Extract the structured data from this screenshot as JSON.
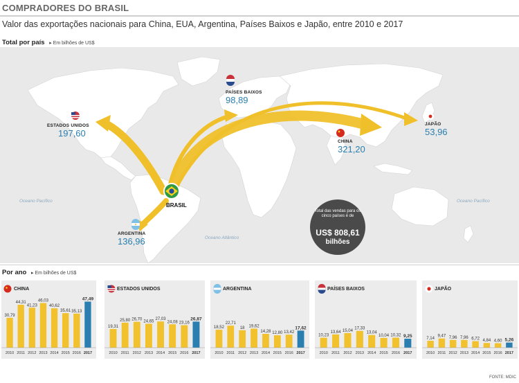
{
  "header": {
    "title": "COMPRADORES DO BRASIL",
    "subtitle": "Valor das exportações nacionais para China, EUA, Argentina, Países Baixos e Japão, entre 2010 e 2017"
  },
  "map": {
    "section_title": "Total por país",
    "section_unit": "Em bilhões de US$",
    "origin_label": "BRASIL",
    "countries": [
      {
        "name": "ESTADOS UNIDOS",
        "value": "197,60"
      },
      {
        "name": "PAÍSES BAIXOS",
        "value": "98,89"
      },
      {
        "name": "CHINA",
        "value": "321,20"
      },
      {
        "name": "JAPÃO",
        "value": "53,96"
      },
      {
        "name": "ARGENTINA",
        "value": "136,96"
      }
    ],
    "oceans": {
      "pacific_left": "Oceano Pacífico",
      "pacific_right": "Oceano Pacífico",
      "atlantic": "Oceano Atlântico"
    },
    "total": {
      "text": "Total das vendas para os cinco países é de",
      "value": "US$ 808,61",
      "unit": "bilhões"
    }
  },
  "colors": {
    "bar": "#f2c12e",
    "bar_highlight": "#2a7fb0",
    "arrow": "#f0c02b",
    "land": "#ffffff",
    "ocean": "#e9e9e9",
    "panel": "#ececec",
    "value_text": "#2a7fb0"
  },
  "by_year": {
    "section_title": "Por ano",
    "section_unit": "Em bilhões de US$"
  },
  "chart_data": [
    {
      "type": "bar",
      "title": "CHINA",
      "categories": [
        "2010",
        "2011",
        "2012",
        "2013",
        "2014",
        "2015",
        "2016",
        "2017"
      ],
      "values": [
        30.79,
        44.31,
        41.23,
        46.03,
        40.62,
        35.61,
        35.13,
        47.49
      ],
      "labels": [
        "30,79",
        "44,31",
        "41,23",
        "46,03",
        "40,62",
        "35,61",
        "35,13",
        "47,49"
      ],
      "ylim": [
        0,
        50
      ]
    },
    {
      "type": "bar",
      "title": "ESTADOS UNIDOS",
      "categories": [
        "2010",
        "2011",
        "2012",
        "2013",
        "2014",
        "2015",
        "2016",
        "2017"
      ],
      "values": [
        19.31,
        25.8,
        26.7,
        24.65,
        27.03,
        24.08,
        23.16,
        26.87
      ],
      "labels": [
        "19,31",
        "25,80",
        "26,70",
        "24,65",
        "27,03",
        "24,08",
        "23,16",
        "26,87"
      ],
      "ylim": [
        0,
        50
      ]
    },
    {
      "type": "bar",
      "title": "ARGENTINA",
      "categories": [
        "2010",
        "2011",
        "2012",
        "2013",
        "2014",
        "2015",
        "2016",
        "2017"
      ],
      "values": [
        18.52,
        22.71,
        18,
        19.62,
        14.28,
        12.8,
        13.42,
        17.62
      ],
      "labels": [
        "18,52",
        "22,71",
        "18",
        "19,62",
        "14,28",
        "12,80",
        "13,42",
        "17,62"
      ],
      "ylim": [
        0,
        50
      ]
    },
    {
      "type": "bar",
      "title": "PAÍSES BAIXOS",
      "categories": [
        "2010",
        "2011",
        "2012",
        "2013",
        "2014",
        "2015",
        "2016",
        "2017"
      ],
      "values": [
        10.23,
        13.64,
        15.04,
        17.33,
        13.04,
        10.04,
        10.32,
        9.25
      ],
      "labels": [
        "10,23",
        "13,64",
        "15,04",
        "17,33",
        "13,04",
        "10,04",
        "10,32",
        "9,25"
      ],
      "ylim": [
        0,
        50
      ]
    },
    {
      "type": "bar",
      "title": "JAPÃO",
      "categories": [
        "2010",
        "2011",
        "2012",
        "2013",
        "2014",
        "2015",
        "2016",
        "2017"
      ],
      "values": [
        7.14,
        9.47,
        7.96,
        7.96,
        6.72,
        4.84,
        4.6,
        5.26
      ],
      "labels": [
        "7,14",
        "9,47",
        "7,96",
        "7,96",
        "6,72",
        "4,84",
        "4,60",
        "5,26"
      ],
      "ylim": [
        0,
        50
      ]
    }
  ],
  "source": "FONTE: MDIC"
}
